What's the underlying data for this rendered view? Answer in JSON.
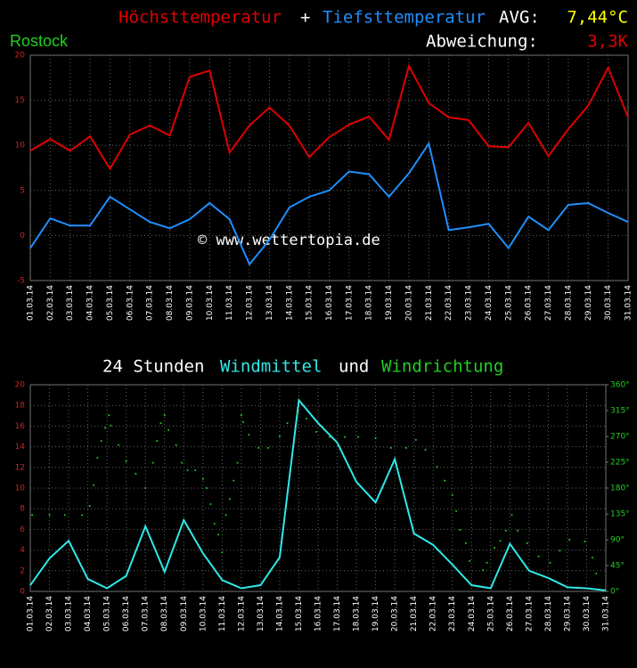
{
  "chart_data": [
    {
      "type": "line",
      "location": "Rostock",
      "title_joiner": "+",
      "avg_label": "AVG:",
      "avg_value": "7,44°C",
      "deviation_label": "Abweichung:",
      "deviation_value": "3,3K",
      "annotation": "© www.wettertopia.de",
      "categories": [
        "01.03.14",
        "02.03.14",
        "03.03.14",
        "04.03.14",
        "05.03.14",
        "06.03.14",
        "07.03.14",
        "08.03.14",
        "09.03.14",
        "10.03.14",
        "11.03.14",
        "12.03.14",
        "13.03.14",
        "14.03.14",
        "15.03.14",
        "16.03.14",
        "17.03.14",
        "18.03.14",
        "19.03.14",
        "20.03.14",
        "21.03.14",
        "22.03.14",
        "23.03.14",
        "24.03.14",
        "25.03.14",
        "26.03.14",
        "27.03.14",
        "28.03.14",
        "29.03.14",
        "30.03.14",
        "31.03.14"
      ],
      "series": [
        {
          "name": "Höchsttemperatur",
          "color": "#e00000",
          "values": [
            9.4,
            10.7,
            9.4,
            11.0,
            7.4,
            11.2,
            12.2,
            11.1,
            17.6,
            18.3,
            9.2,
            12.2,
            14.2,
            12.2,
            8.7,
            10.9,
            12.3,
            13.2,
            10.6,
            18.8,
            14.7,
            13.1,
            12.8,
            9.9,
            9.8,
            12.5,
            8.8,
            11.8,
            14.4,
            18.6,
            13.1
          ]
        },
        {
          "name": "Tiefsttemperatur",
          "color": "#1e8fff",
          "values": [
            -1.4,
            1.9,
            1.1,
            1.1,
            4.3,
            2.9,
            1.5,
            0.8,
            1.8,
            3.6,
            1.8,
            -3.2,
            -0.5,
            3.1,
            4.3,
            5.0,
            7.1,
            6.8,
            4.3,
            6.9,
            10.2,
            0.6,
            0.9,
            1.3,
            -1.4,
            2.1,
            0.6,
            3.4,
            3.6,
            2.5,
            1.5
          ]
        }
      ],
      "ylim": [
        -5,
        20
      ],
      "yticks": [
        -5,
        0,
        5,
        10,
        15,
        20
      ],
      "grid": true
    },
    {
      "type": "line",
      "title_prefix": "24 Stunden",
      "title_joiner": "und",
      "categories": [
        "01.03.14",
        "02.03.14",
        "03.03.14",
        "04.03.14",
        "05.03.14",
        "06.03.14",
        "07.03.14",
        "08.03.14",
        "09.03.14",
        "10.03.14",
        "11.03.14",
        "12.03.14",
        "13.03.14",
        "14.03.14",
        "15.03.14",
        "16.03.14",
        "17.03.14",
        "18.03.14",
        "19.03.14",
        "20.03.14",
        "21.03.14",
        "22.03.14",
        "23.03.14",
        "24.03.14",
        "25.03.14",
        "26.03.14",
        "27.03.14",
        "28.03.14",
        "29.03.14",
        "30.03.14",
        "31.03.14"
      ],
      "xlim": [
        1,
        31
      ],
      "series": [
        {
          "name": "Windmittel",
          "color": "#30e8e8",
          "values": [
            0.6,
            3.2,
            4.9,
            1.2,
            0.3,
            1.5,
            6.3,
            1.9,
            6.9,
            3.7,
            1.1,
            0.3,
            0.6,
            3.3,
            18.5,
            16.3,
            14.4,
            10.6,
            8.6,
            12.8,
            5.6,
            4.5,
            2.6,
            0.6,
            0.3,
            4.6,
            2.0,
            1.3,
            0.4,
            0.3,
            0.1
          ]
        },
        {
          "name": "Windrichtung",
          "color": "#20d020",
          "type": "scatter",
          "axis": "y2",
          "x": [
            1.1,
            2.0,
            2.8,
            3.7,
            4.1,
            4.3,
            4.5,
            4.7,
            4.9,
            5.1,
            5.2,
            5.6,
            6.0,
            6.5,
            7.0,
            7.4,
            7.6,
            7.8,
            8.0,
            8.2,
            8.6,
            8.9,
            9.2,
            9.6,
            10.0,
            10.2,
            10.4,
            10.6,
            10.8,
            11.0,
            11.2,
            11.4,
            11.6,
            11.8,
            12.0,
            12.1,
            12.4,
            12.9,
            13.4,
            14.0,
            14.4,
            14.9,
            15.4,
            15.9,
            16.6,
            17.4,
            18.1,
            19.0,
            19.8,
            20.6,
            21.1,
            21.6,
            22.2,
            22.6,
            23.0,
            23.2,
            23.4,
            23.7,
            23.9,
            24.6,
            24.8,
            25.2,
            25.5,
            25.8,
            26.1,
            26.4,
            26.9,
            27.5,
            28.1,
            28.6,
            29.1,
            29.9,
            30.3,
            30.5
          ],
          "values": [
            133,
            133,
            133,
            133,
            149,
            185,
            233,
            262,
            285,
            307,
            289,
            255,
            227,
            205,
            180,
            224,
            262,
            293,
            307,
            281,
            255,
            224,
            211,
            211,
            196,
            180,
            152,
            118,
            99,
            68,
            133,
            161,
            193,
            224,
            307,
            295,
            273,
            250,
            250,
            270,
            293,
            310,
            301,
            278,
            269,
            269,
            269,
            267,
            250,
            250,
            264,
            247,
            217,
            193,
            168,
            140,
            107,
            84,
            53,
            37,
            50,
            76,
            88,
            106,
            133,
            106,
            84,
            61,
            50,
            71,
            90,
            87,
            59,
            31
          ]
        }
      ],
      "ylim": [
        0,
        20
      ],
      "yticks": [
        0,
        2,
        4,
        6,
        8,
        10,
        12,
        14,
        16,
        18,
        20
      ],
      "y2lim": [
        0,
        360
      ],
      "y2ticks": [
        {
          "value": 0,
          "label": "0°"
        },
        {
          "value": 45,
          "label": "45°"
        },
        {
          "value": 90,
          "label": "90°"
        },
        {
          "value": 135,
          "label": "135°"
        },
        {
          "value": 180,
          "label": "180°"
        },
        {
          "value": 225,
          "label": "225°"
        },
        {
          "value": 270,
          "label": "270°"
        },
        {
          "value": 315,
          "label": "315°"
        },
        {
          "value": 360,
          "label": "360°"
        }
      ],
      "grid": true
    }
  ]
}
